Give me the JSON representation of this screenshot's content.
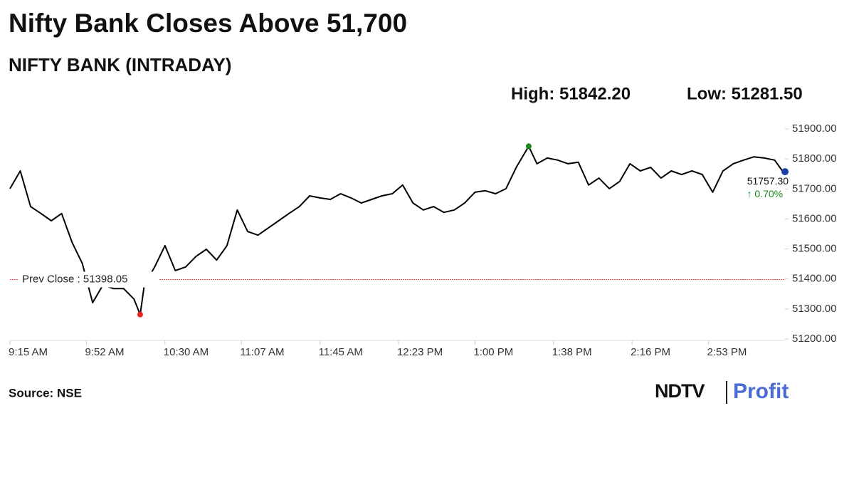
{
  "chart_data": {
    "type": "line",
    "title": "Nifty Bank Closes Above 51,700",
    "subtitle": "NIFTY BANK (INTRADAY)",
    "high": {
      "value": 51842.2,
      "label": "High: 51842.20",
      "time": "1:26 PM",
      "color": "#1a8a1a"
    },
    "low": {
      "value": 51281.5,
      "label": "Low: 51281.50",
      "time": "10:18 AM",
      "color": "#e8221b"
    },
    "prev_close": {
      "value": 51398.05,
      "label": "Prev Close : 51398.05",
      "color": "#d9534f"
    },
    "last": {
      "value": 51757.3,
      "label": "51757.30",
      "change": "↑ 0.70%",
      "color": "#1a3fa8",
      "change_color": "#1a8a1a"
    },
    "source": "Source: NSE",
    "logo": {
      "left": "NDTV",
      "right": "Profit"
    },
    "x": [
      "9:15 AM",
      "9:20 AM",
      "9:25 AM",
      "9:30 AM",
      "9:35 AM",
      "9:40 AM",
      "9:45 AM",
      "9:50 AM",
      "9:55 AM",
      "10:00 AM",
      "10:05 AM",
      "10:10 AM",
      "10:15 AM",
      "10:18 AM",
      "10:20 AM",
      "10:25 AM",
      "10:30 AM",
      "10:35 AM",
      "10:40 AM",
      "10:45 AM",
      "10:50 AM",
      "10:55 AM",
      "11:00 AM",
      "11:05 AM",
      "11:10 AM",
      "11:15 AM",
      "11:20 AM",
      "11:25 AM",
      "11:30 AM",
      "11:35 AM",
      "11:40 AM",
      "11:45 AM",
      "11:50 AM",
      "11:55 AM",
      "12:00 PM",
      "12:05 PM",
      "12:10 PM",
      "12:15 PM",
      "12:20 PM",
      "12:25 PM",
      "12:30 PM",
      "12:35 PM",
      "12:40 PM",
      "12:45 PM",
      "12:50 PM",
      "12:55 PM",
      "1:00 PM",
      "1:05 PM",
      "1:10 PM",
      "1:15 PM",
      "1:20 PM",
      "1:26 PM",
      "1:30 PM",
      "1:35 PM",
      "1:40 PM",
      "1:45 PM",
      "1:50 PM",
      "1:55 PM",
      "2:00 PM",
      "2:05 PM",
      "2:10 PM",
      "2:15 PM",
      "2:20 PM",
      "2:25 PM",
      "2:30 PM",
      "2:35 PM",
      "2:40 PM",
      "2:45 PM",
      "2:50 PM",
      "2:55 PM",
      "3:00 PM",
      "3:05 PM",
      "3:10 PM",
      "3:15 PM",
      "3:20 PM",
      "3:25 PM",
      "3:29 PM"
    ],
    "series": [
      {
        "name": "NIFTY BANK",
        "color": "#000000",
        "values": [
          51701,
          51760,
          51641,
          51618,
          51594,
          51618,
          51523,
          51452,
          51321,
          51380,
          51368,
          51368,
          51333,
          51281.5,
          51380,
          51440,
          51511,
          51428,
          51440,
          51475,
          51499,
          51463,
          51511,
          51630,
          51558,
          51546,
          51570,
          51594,
          51618,
          51641,
          51677,
          51670,
          51665,
          51684,
          51670,
          51653,
          51665,
          51677,
          51684,
          51713,
          51653,
          51630,
          51641,
          51622,
          51630,
          51653,
          51689,
          51694,
          51684,
          51701,
          51772,
          51842.2,
          51784,
          51803,
          51796,
          51784,
          51789,
          51713,
          51736,
          51701,
          51725,
          51784,
          51760,
          51772,
          51736,
          51760,
          51748,
          51760,
          51748,
          51689,
          51760,
          51784,
          51796,
          51807,
          51803,
          51796,
          51757.3
        ]
      }
    ],
    "xlim": [
      "9:15 AM",
      "3:30 PM"
    ],
    "xticks": [
      "9:15 AM",
      "9:52 AM",
      "10:30 AM",
      "11:07 AM",
      "11:45 AM",
      "12:23 PM",
      "1:00 PM",
      "1:38 PM",
      "2:16 PM",
      "2:53 PM"
    ],
    "ylim": [
      51200,
      51900
    ],
    "yticks": [
      {
        "value": 51200,
        "label": "51200.00"
      },
      {
        "value": 51300,
        "label": "51300.00"
      },
      {
        "value": 51400,
        "label": "51400.00"
      },
      {
        "value": 51500,
        "label": "51500.00"
      },
      {
        "value": 51600,
        "label": "51600.00"
      },
      {
        "value": 51700,
        "label": "51700.00"
      },
      {
        "value": 51800,
        "label": "51800.00"
      },
      {
        "value": 51900,
        "label": "51900.00"
      }
    ]
  }
}
